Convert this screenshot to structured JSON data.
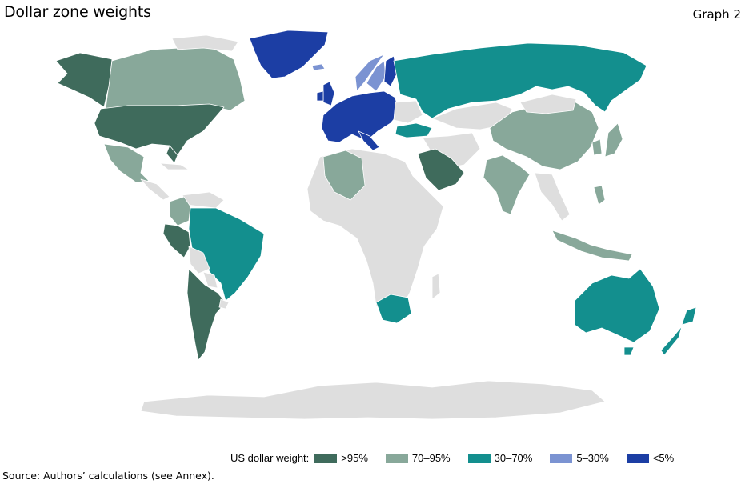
{
  "header": {
    "title": "Dollar zone weights",
    "graph_label": "Graph 2"
  },
  "map": {
    "colors": {
      "base": "#dedede",
      "band_95_plus": "#3f6b5c",
      "band_70_95": "#88a89a",
      "band_30_70": "#138f8e",
      "band_5_30": "#7b93d2",
      "band_lt_5": "#1c3ea4"
    },
    "regions": [
      {
        "name": "United States",
        "band": ">95%"
      },
      {
        "name": "Saudi Arabia",
        "band": ">95%"
      },
      {
        "name": "Peru",
        "band": ">95%"
      },
      {
        "name": "Argentina",
        "band": ">95%"
      },
      {
        "name": "Alaska",
        "band": ">95%"
      },
      {
        "name": "Canada",
        "band": "70–95%"
      },
      {
        "name": "Mexico",
        "band": "70–95%"
      },
      {
        "name": "China",
        "band": "70–95%"
      },
      {
        "name": "India",
        "band": "70–95%"
      },
      {
        "name": "Algeria",
        "band": "70–95%"
      },
      {
        "name": "Colombia",
        "band": "70–95%"
      },
      {
        "name": "Russia",
        "band": "30–70%"
      },
      {
        "name": "Brazil",
        "band": "30–70%"
      },
      {
        "name": "Australia",
        "band": "30–70%"
      },
      {
        "name": "South Africa",
        "band": "30–70%"
      },
      {
        "name": "Turkey",
        "band": "30–70%"
      },
      {
        "name": "New Zealand",
        "band": "30–70%"
      },
      {
        "name": "Norway",
        "band": "5–30%"
      },
      {
        "name": "Sweden",
        "band": "5–30%"
      },
      {
        "name": "Greenland",
        "band": "<5%"
      },
      {
        "name": "Euro area",
        "band": "<5%"
      }
    ]
  },
  "legend": {
    "label": "US dollar weight:",
    "items": [
      {
        "label": ">95%",
        "color": "#3f6b5c"
      },
      {
        "label": "70–95%",
        "color": "#88a89a"
      },
      {
        "label": "30–70%",
        "color": "#138f8e"
      },
      {
        "label": "5–30%",
        "color": "#7b93d2"
      },
      {
        "label": "<5%",
        "color": "#1c3ea4"
      }
    ]
  },
  "footer": {
    "source": "Source: Authors’ calculations (see Annex)."
  }
}
